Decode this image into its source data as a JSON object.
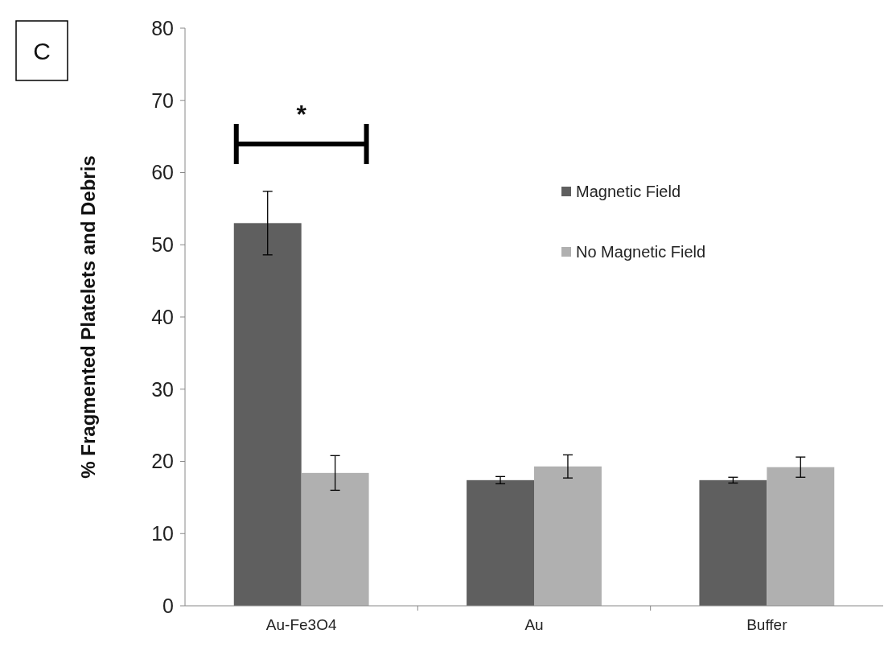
{
  "chart_data": {
    "type": "bar",
    "ylabel": "% Fragmented Platelets and Debris",
    "categories": [
      "Au-Fe3O4",
      "Au",
      "Buffer"
    ],
    "series": [
      {
        "name": "Magnetic Field",
        "color": "#5f5f5f",
        "values": [
          53,
          17.4,
          17.4
        ],
        "errors": [
          4.4,
          0.5,
          0.4
        ]
      },
      {
        "name": "No Magnetic Field",
        "color": "#b0b0b0",
        "values": [
          18.4,
          19.3,
          19.2
        ],
        "errors": [
          2.4,
          1.6,
          1.4
        ]
      }
    ],
    "ylim": [
      0,
      80
    ],
    "yticks": [
      0,
      10,
      20,
      30,
      40,
      50,
      60,
      70,
      80
    ],
    "grid": false,
    "legend": "right",
    "annotations": [
      "C",
      "*"
    ]
  }
}
